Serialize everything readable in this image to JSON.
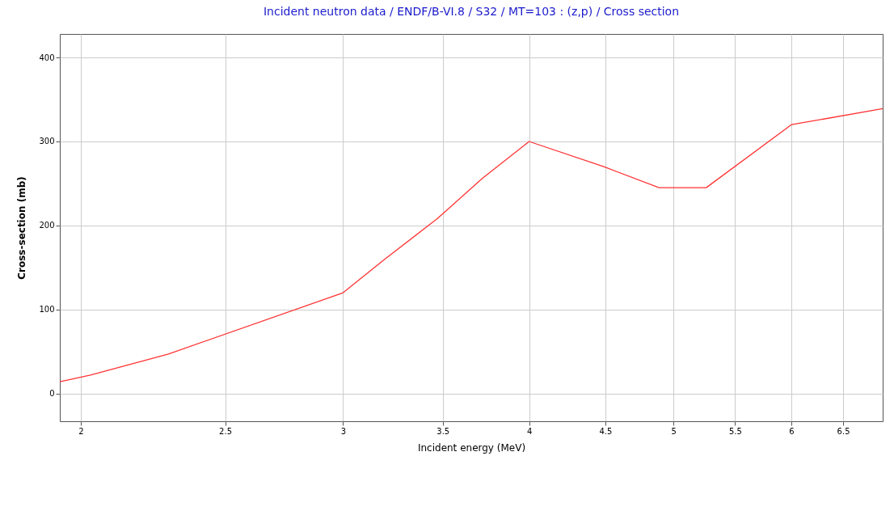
{
  "chart_data": {
    "type": "line",
    "title": "Incident neutron data / ENDF/B-VI.8 / S32 / MT=103 : (z,p) / Cross section",
    "xlabel": "Incident energy (MeV)",
    "ylabel": "Cross-section (mb)",
    "log": "x",
    "grid": true,
    "marker": "none",
    "line_style": "solid",
    "xlim": [
      1.936,
      6.91
    ],
    "xticks": [
      2,
      2.5,
      3,
      3.5,
      4,
      4.5,
      5,
      5.5,
      6,
      6.5
    ],
    "ylim": [
      -33,
      428
    ],
    "yticks": [
      0,
      100,
      200,
      300,
      400
    ],
    "series": [
      {
        "color": "#ff3333",
        "x": [
          1.936,
          2.03,
          2.29,
          3,
          3.2,
          3.47,
          3.72,
          4,
          4.49,
          4.89,
          5.26,
          6,
          6.91
        ],
        "values": [
          14,
          22,
          47,
          120,
          160,
          208,
          256,
          300,
          270,
          245,
          245,
          320,
          339
        ]
      }
    ]
  }
}
